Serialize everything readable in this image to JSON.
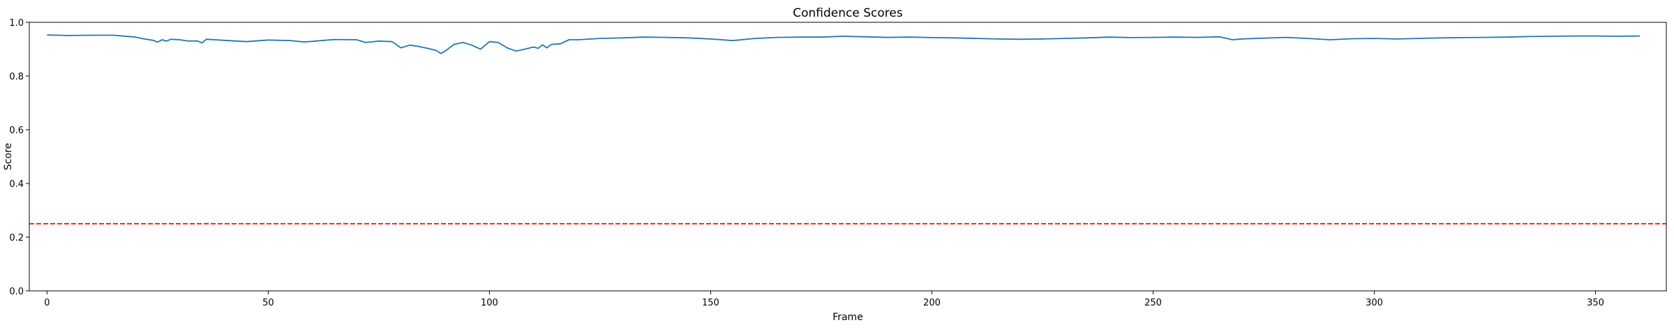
{
  "chart_data": {
    "type": "line",
    "title": "Confidence Scores",
    "xlabel": "Frame",
    "ylabel": "Score",
    "xlim": [
      -4,
      366
    ],
    "ylim": [
      0.0,
      1.0
    ],
    "xticks": [
      0,
      50,
      100,
      150,
      200,
      250,
      300,
      350
    ],
    "yticks": [
      0.0,
      0.2,
      0.4,
      0.6,
      0.8,
      1.0
    ],
    "xtick_labels": [
      "0",
      "50",
      "100",
      "150",
      "200",
      "250",
      "300",
      "350"
    ],
    "ytick_labels": [
      "0.0",
      "0.2",
      "0.4",
      "0.6",
      "0.8",
      "1.0"
    ],
    "grid": false,
    "series": [
      {
        "color": "#1f77b4",
        "x": [
          0,
          5,
          10,
          15,
          20,
          22,
          24,
          25,
          26,
          27,
          28,
          30,
          32,
          34,
          35,
          36,
          38,
          40,
          45,
          50,
          55,
          58,
          60,
          62,
          65,
          70,
          72,
          75,
          78,
          80,
          82,
          84,
          86,
          88,
          89,
          90,
          92,
          94,
          96,
          98,
          100,
          102,
          104,
          106,
          108,
          110,
          111,
          112,
          113,
          114,
          116,
          118,
          120,
          125,
          130,
          135,
          140,
          145,
          150,
          155,
          160,
          165,
          170,
          175,
          180,
          185,
          190,
          195,
          200,
          205,
          210,
          215,
          220,
          225,
          230,
          235,
          240,
          245,
          250,
          255,
          260,
          265,
          268,
          270,
          275,
          280,
          285,
          290,
          295,
          300,
          305,
          310,
          315,
          320,
          325,
          330,
          335,
          340,
          345,
          350,
          355,
          360
        ],
        "y": [
          0.953,
          0.951,
          0.952,
          0.952,
          0.945,
          0.938,
          0.933,
          0.926,
          0.935,
          0.93,
          0.937,
          0.935,
          0.93,
          0.931,
          0.923,
          0.937,
          0.935,
          0.933,
          0.928,
          0.934,
          0.932,
          0.927,
          0.929,
          0.932,
          0.936,
          0.935,
          0.925,
          0.93,
          0.928,
          0.905,
          0.915,
          0.91,
          0.903,
          0.895,
          0.884,
          0.893,
          0.918,
          0.925,
          0.915,
          0.9,
          0.928,
          0.925,
          0.905,
          0.893,
          0.9,
          0.908,
          0.903,
          0.916,
          0.905,
          0.918,
          0.92,
          0.935,
          0.935,
          0.94,
          0.942,
          0.945,
          0.944,
          0.942,
          0.938,
          0.932,
          0.94,
          0.944,
          0.945,
          0.945,
          0.948,
          0.946,
          0.944,
          0.945,
          0.943,
          0.942,
          0.94,
          0.938,
          0.937,
          0.938,
          0.94,
          0.942,
          0.945,
          0.943,
          0.944,
          0.945,
          0.944,
          0.946,
          0.935,
          0.938,
          0.941,
          0.944,
          0.94,
          0.935,
          0.939,
          0.94,
          0.938,
          0.94,
          0.942,
          0.943,
          0.944,
          0.945,
          0.947,
          0.948,
          0.949,
          0.949,
          0.948,
          0.949
        ]
      }
    ],
    "hlines": [
      {
        "y": 0.25,
        "color": "#ff0000",
        "style": "dashed"
      }
    ]
  }
}
